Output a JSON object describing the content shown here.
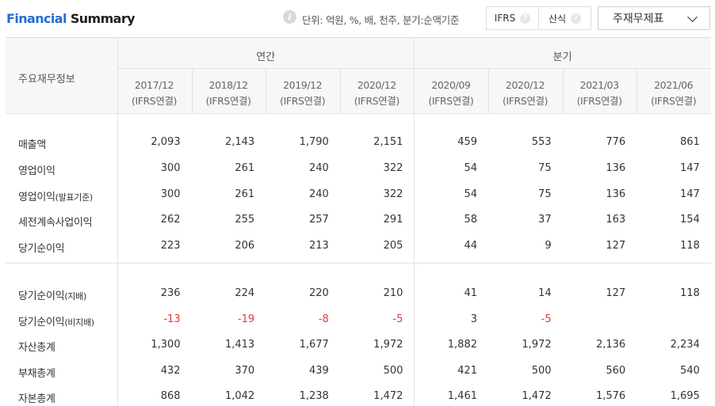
{
  "header": {
    "title_part1": "Financial",
    "title_part2": "Summary",
    "info_icon_glyph": "i",
    "unit_text": "단위: 억원, %, 배, 천주, 분기:순액기준",
    "toggle": [
      {
        "label": "IFRS",
        "help_glyph": "?"
      },
      {
        "label": "산식",
        "help_glyph": "?"
      }
    ],
    "dropdown": {
      "selected": "주재무제표"
    }
  },
  "table": {
    "corner_label": "주요재무정보",
    "groups": [
      {
        "label": "연간"
      },
      {
        "label": "분기"
      }
    ],
    "columns": [
      {
        "period": "2017/12",
        "basis": "(IFRS연결)"
      },
      {
        "period": "2018/12",
        "basis": "(IFRS연결)"
      },
      {
        "period": "2019/12",
        "basis": "(IFRS연결)"
      },
      {
        "period": "2020/12",
        "basis": "(IFRS연결)"
      },
      {
        "period": "2020/09",
        "basis": "(IFRS연결)"
      },
      {
        "period": "2020/12",
        "basis": "(IFRS연결)"
      },
      {
        "period": "2021/03",
        "basis": "(IFRS연결)"
      },
      {
        "period": "2021/06",
        "basis": "(IFRS연결)"
      }
    ],
    "rows": [
      {
        "label": "매출액",
        "sub": "",
        "values": [
          "2,093",
          "2,143",
          "1,790",
          "2,151",
          "459",
          "553",
          "776",
          "861"
        ]
      },
      {
        "label": "영업이익",
        "sub": "",
        "values": [
          "300",
          "261",
          "240",
          "322",
          "54",
          "75",
          "136",
          "147"
        ]
      },
      {
        "label": "영업이익",
        "sub": "(발표기준)",
        "values": [
          "300",
          "261",
          "240",
          "322",
          "54",
          "75",
          "136",
          "147"
        ]
      },
      {
        "label": "세전계속사업이익",
        "sub": "",
        "values": [
          "262",
          "255",
          "257",
          "291",
          "58",
          "37",
          "163",
          "154"
        ]
      },
      {
        "label": "당기순이익",
        "sub": "",
        "values": [
          "223",
          "206",
          "213",
          "205",
          "44",
          "9",
          "127",
          "118"
        ]
      },
      {
        "label": "당기순이익",
        "sub": "(지배)",
        "values": [
          "236",
          "224",
          "220",
          "210",
          "41",
          "14",
          "127",
          "118"
        ]
      },
      {
        "label": "당기순이익",
        "sub": "(비지배)",
        "values": [
          "-13",
          "-19",
          "-8",
          "-5",
          "3",
          "-5",
          "",
          ""
        ]
      },
      {
        "label": "자산총계",
        "sub": "",
        "values": [
          "1,300",
          "1,413",
          "1,677",
          "1,972",
          "1,882",
          "1,972",
          "2,136",
          "2,234"
        ]
      },
      {
        "label": "부채총계",
        "sub": "",
        "values": [
          "432",
          "370",
          "439",
          "500",
          "421",
          "500",
          "560",
          "540"
        ]
      },
      {
        "label": "자본총계",
        "sub": "",
        "values": [
          "868",
          "1,042",
          "1,238",
          "1,472",
          "1,461",
          "1,472",
          "1,576",
          "1,695"
        ]
      }
    ],
    "negative_color": "#e2383f",
    "accent_color": "#1f6fd0"
  }
}
